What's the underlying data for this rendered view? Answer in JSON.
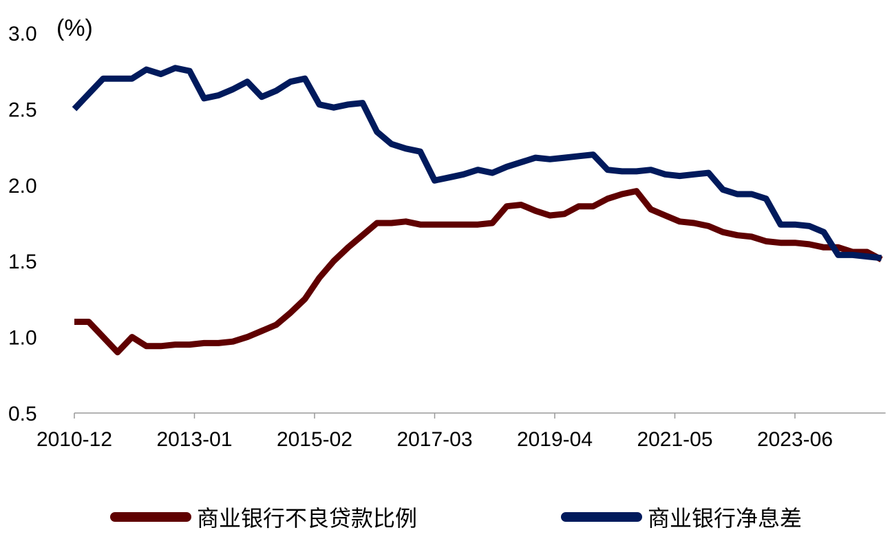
{
  "chart_data": {
    "type": "line",
    "title": "",
    "xlabel": "",
    "ylabel": "(%)",
    "ylim": [
      0.5,
      3.0
    ],
    "yticks": [
      "0.5",
      "1.0",
      "1.5",
      "2.0",
      "2.5",
      "3.0"
    ],
    "xticks": [
      "2010-12",
      "2013-01",
      "2015-02",
      "2017-03",
      "2019-04",
      "2021-05",
      "2023-06"
    ],
    "x_start": "2010-12",
    "x_step_months": 3,
    "grid": false,
    "legend_position": "bottom",
    "series": [
      {
        "name": "商业银行不良贷款比例",
        "color": "#5F0000",
        "values": [
          1.1,
          1.1,
          1.0,
          0.9,
          1.0,
          0.94,
          0.94,
          0.95,
          0.95,
          0.96,
          0.96,
          0.97,
          1.0,
          1.04,
          1.08,
          1.16,
          1.25,
          1.39,
          1.5,
          1.59,
          1.67,
          1.75,
          1.75,
          1.76,
          1.74,
          1.74,
          1.74,
          1.74,
          1.74,
          1.75,
          1.86,
          1.87,
          1.83,
          1.8,
          1.81,
          1.86,
          1.86,
          1.91,
          1.94,
          1.96,
          1.84,
          1.8,
          1.76,
          1.75,
          1.73,
          1.69,
          1.67,
          1.66,
          1.63,
          1.62,
          1.62,
          1.61,
          1.59,
          1.59,
          1.56,
          1.56,
          1.51
        ]
      },
      {
        "name": "商业银行净息差",
        "color": "#001A5C",
        "values": [
          2.5,
          2.6,
          2.7,
          2.7,
          2.7,
          2.76,
          2.73,
          2.77,
          2.75,
          2.57,
          2.59,
          2.63,
          2.68,
          2.58,
          2.62,
          2.68,
          2.7,
          2.53,
          2.51,
          2.53,
          2.54,
          2.35,
          2.27,
          2.24,
          2.22,
          2.03,
          2.05,
          2.07,
          2.1,
          2.08,
          2.12,
          2.15,
          2.18,
          2.17,
          2.18,
          2.19,
          2.2,
          2.1,
          2.09,
          2.09,
          2.1,
          2.07,
          2.06,
          2.07,
          2.08,
          1.97,
          1.94,
          1.94,
          1.91,
          1.74,
          1.74,
          1.73,
          1.69,
          1.54,
          1.54,
          1.53,
          1.52
        ]
      }
    ]
  }
}
